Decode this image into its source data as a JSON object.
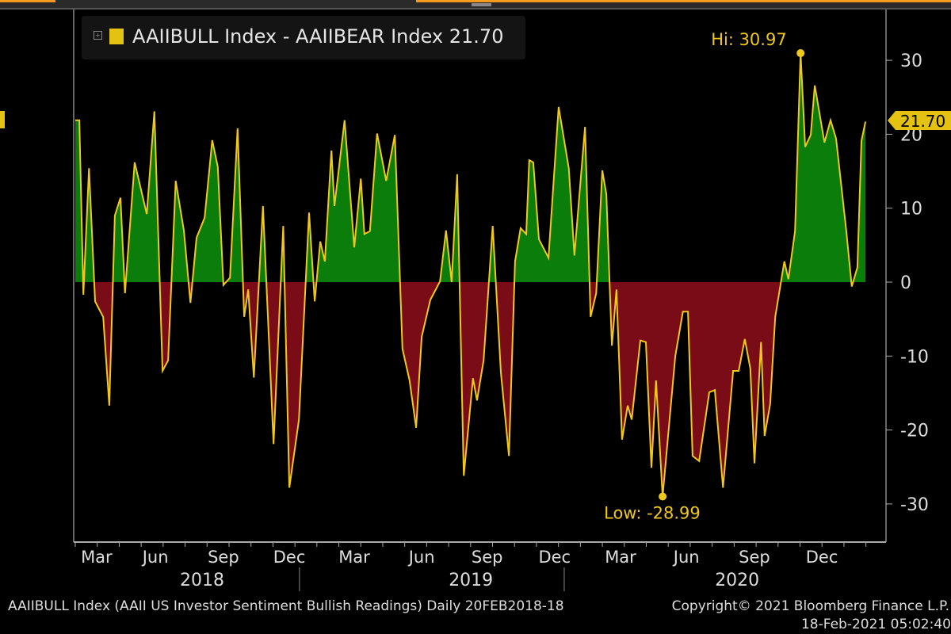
{
  "legend": {
    "label": "AAIIBULL Index - AAIIBEAR Index 21.70",
    "color": "#e3c212"
  },
  "footer": {
    "source": "AAIIBULL Index (AAII US Investor Sentiment Bullish Readings)  Daily 20FEB2018-18",
    "copyright": "Copyright© 2021 Bloomberg Finance L.P.",
    "timestamp": "18-Feb-2021 05:02:40"
  },
  "chart_data": {
    "type": "area",
    "title": "AAIIBULL Index - AAIIBEAR Index",
    "x_units": "weeks since 20 Feb 2018",
    "ylim": [
      -36,
      37
    ],
    "xlim": [
      -0.3,
      159
    ],
    "yticks": [
      30,
      20,
      10,
      0,
      -10,
      -20,
      -30
    ],
    "current_value": "21.70",
    "hi": {
      "label": "Hi: 30.97",
      "x": 143,
      "y": 30.97
    },
    "low": {
      "label": "Low: -28.99",
      "x": 115.8,
      "y": -28.99
    },
    "xticks": [
      {
        "label": "Mar",
        "w": 4.2
      },
      {
        "label": "Jun",
        "w": 15.8
      },
      {
        "label": "Sep",
        "w": 29.2
      },
      {
        "label": "Dec",
        "w": 42.2
      },
      {
        "label": "Mar",
        "w": 55
      },
      {
        "label": "Jun",
        "w": 68.3
      },
      {
        "label": "Sep",
        "w": 81.2
      },
      {
        "label": "Dec",
        "w": 94.5
      },
      {
        "label": "Mar",
        "w": 107.5
      },
      {
        "label": "Jun",
        "w": 120.5
      },
      {
        "label": "Sep",
        "w": 133.9
      },
      {
        "label": "Dec",
        "w": 147.2
      }
    ],
    "years": [
      {
        "label": "2018",
        "w": 25
      },
      {
        "label": "2019",
        "w": 78
      },
      {
        "label": "2020",
        "w": 130.5
      }
    ],
    "year_separators": [
      44.2,
      96.4
    ],
    "colors": {
      "positive": "#0b7d0b",
      "negative": "#7a0c18",
      "line": "#f0c81c"
    },
    "series": [
      {
        "name": "AAIIBULL Index - AAIIBEAR Index",
        "points": [
          [
            0,
            21.9
          ],
          [
            0.8,
            21.9
          ],
          [
            1.6,
            -1.7
          ],
          [
            2.7,
            15.4
          ],
          [
            3.9,
            -2.6
          ],
          [
            5.5,
            -4.7
          ],
          [
            6.7,
            -16.7
          ],
          [
            7.8,
            9
          ],
          [
            8.9,
            11.4
          ],
          [
            9.8,
            -1.5
          ],
          [
            11.7,
            16.2
          ],
          [
            14.1,
            9.2
          ],
          [
            15.6,
            23.1
          ],
          [
            17.2,
            -12
          ],
          [
            18.3,
            -10.6
          ],
          [
            19.8,
            13.7
          ],
          [
            21.4,
            7
          ],
          [
            22.7,
            -2.8
          ],
          [
            23.9,
            6
          ],
          [
            25.5,
            8.7
          ],
          [
            27,
            19.2
          ],
          [
            28.1,
            15.6
          ],
          [
            29.2,
            -0.4
          ],
          [
            30.5,
            0.6
          ],
          [
            32,
            20.8
          ],
          [
            33.3,
            -4.7
          ],
          [
            34.1,
            -1
          ],
          [
            35.2,
            -12.9
          ],
          [
            37,
            10.3
          ],
          [
            39.1,
            -21.9
          ],
          [
            41,
            7.6
          ],
          [
            42.2,
            -27.8
          ],
          [
            44.1,
            -18.6
          ],
          [
            46.1,
            9.4
          ],
          [
            47.2,
            -2.6
          ],
          [
            48.3,
            5.5
          ],
          [
            49.2,
            2.8
          ],
          [
            50.5,
            17.8
          ],
          [
            51.1,
            10.3
          ],
          [
            53.1,
            21.9
          ],
          [
            55,
            4.7
          ],
          [
            56.3,
            14
          ],
          [
            57,
            6.5
          ],
          [
            58.1,
            6.9
          ],
          [
            59.5,
            20.1
          ],
          [
            61.3,
            13.7
          ],
          [
            63,
            19.9
          ],
          [
            64.5,
            -9
          ],
          [
            65.9,
            -13.3
          ],
          [
            67.2,
            -19.7
          ],
          [
            68.3,
            -7.4
          ],
          [
            70,
            -2.4
          ],
          [
            71.9,
            0.1
          ],
          [
            73.1,
            7
          ],
          [
            74.2,
            0
          ],
          [
            75.3,
            14.6
          ],
          [
            76.6,
            -26.2
          ],
          [
            78.4,
            -13
          ],
          [
            79.2,
            -16
          ],
          [
            80.5,
            -10.6
          ],
          [
            82.3,
            7.6
          ],
          [
            83.9,
            -12.2
          ],
          [
            85.5,
            -23.5
          ],
          [
            86.7,
            2.8
          ],
          [
            87.8,
            7.3
          ],
          [
            88.9,
            6.5
          ],
          [
            89.5,
            16.5
          ],
          [
            90.3,
            16.2
          ],
          [
            91.4,
            5.8
          ],
          [
            93.3,
            3.3
          ],
          [
            95.3,
            23.7
          ],
          [
            97.3,
            15.4
          ],
          [
            98.4,
            3.6
          ],
          [
            100.5,
            21
          ],
          [
            101.6,
            -4.7
          ],
          [
            102.7,
            -1.5
          ],
          [
            103.9,
            15.1
          ],
          [
            104.7,
            11.9
          ],
          [
            105.8,
            -8.6
          ],
          [
            106.7,
            -1
          ],
          [
            107.8,
            -21.3
          ],
          [
            108.9,
            -16.7
          ],
          [
            109.7,
            -18.6
          ],
          [
            111.4,
            -7.9
          ],
          [
            112.5,
            -8.1
          ],
          [
            113.6,
            -25.1
          ],
          [
            114.5,
            -13.3
          ],
          [
            115.8,
            -28.99
          ],
          [
            118.3,
            -10
          ],
          [
            119.8,
            -4
          ],
          [
            120.8,
            -4
          ],
          [
            121.7,
            -23.5
          ],
          [
            123,
            -24.2
          ],
          [
            125,
            -14.9
          ],
          [
            126.1,
            -14.6
          ],
          [
            127.7,
            -27.8
          ],
          [
            129.7,
            -12
          ],
          [
            130.8,
            -12
          ],
          [
            132,
            -7.7
          ],
          [
            133.1,
            -11.7
          ],
          [
            133.9,
            -24.5
          ],
          [
            135.2,
            -8.1
          ],
          [
            135.9,
            -20.8
          ],
          [
            137,
            -16.5
          ],
          [
            138,
            -4.7
          ],
          [
            139.8,
            2.8
          ],
          [
            140.6,
            0.4
          ],
          [
            141.9,
            6.9
          ],
          [
            143,
            30.97
          ],
          [
            143.9,
            18.3
          ],
          [
            145,
            19.9
          ],
          [
            145.8,
            26.6
          ],
          [
            147.7,
            18.9
          ],
          [
            148.9,
            21.9
          ],
          [
            150,
            19.4
          ],
          [
            152,
            7
          ],
          [
            153.1,
            -0.6
          ],
          [
            154.2,
            2
          ],
          [
            155,
            19.1
          ],
          [
            155.8,
            21.7
          ]
        ]
      }
    ]
  }
}
